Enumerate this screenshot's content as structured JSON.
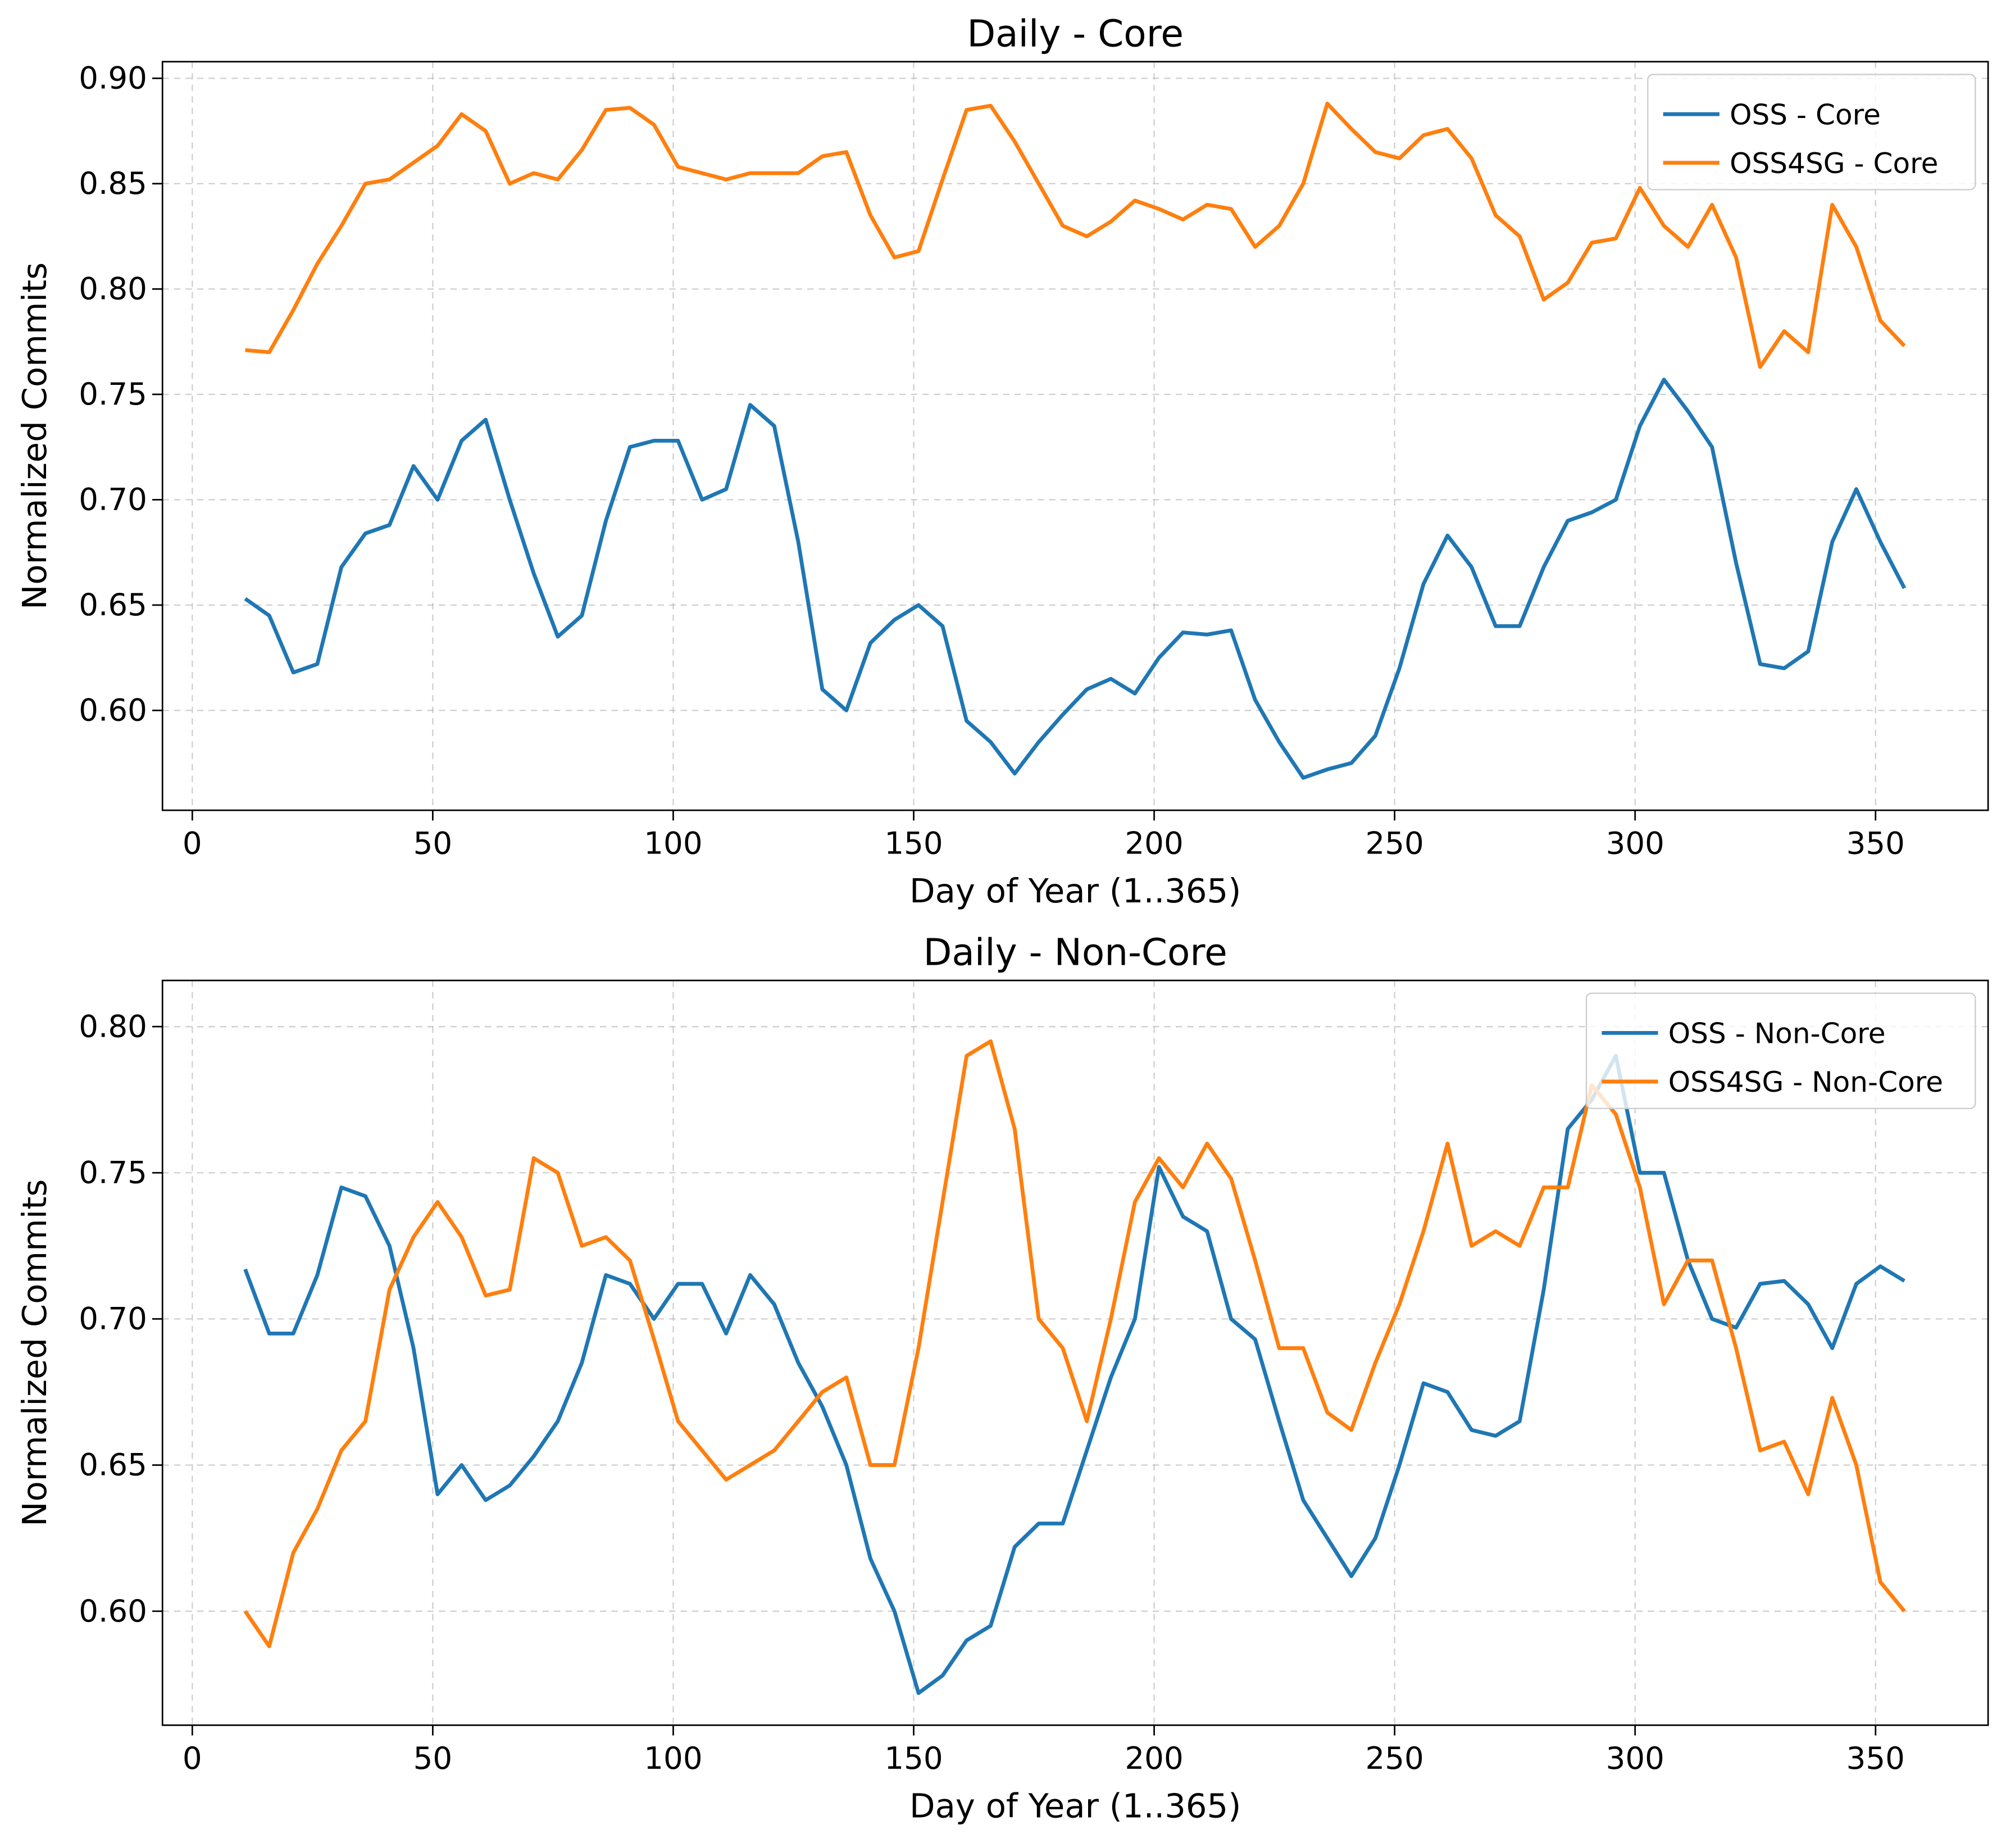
{
  "chart_data": [
    {
      "type": "line",
      "title": "Daily - Core",
      "xlabel": "Day of Year (1..365)",
      "ylabel": "Normalized Commits",
      "x": [
        11,
        16,
        21,
        26,
        31,
        36,
        41,
        46,
        51,
        56,
        61,
        66,
        71,
        76,
        81,
        86,
        91,
        96,
        101,
        106,
        111,
        116,
        121,
        126,
        131,
        136,
        141,
        146,
        151,
        156,
        161,
        166,
        171,
        176,
        181,
        186,
        191,
        196,
        201,
        206,
        211,
        216,
        221,
        226,
        231,
        236,
        241,
        246,
        251,
        256,
        261,
        266,
        271,
        276,
        281,
        286,
        291,
        296,
        301,
        306,
        311,
        316,
        321,
        326,
        331,
        336,
        341,
        346,
        351,
        356
      ],
      "series": [
        {
          "name": "OSS - Core",
          "color": "#1f77b4",
          "values": [
            0.653,
            0.645,
            0.618,
            0.622,
            0.668,
            0.684,
            0.688,
            0.716,
            0.7,
            0.728,
            0.738,
            0.7,
            0.665,
            0.635,
            0.645,
            0.69,
            0.725,
            0.728,
            0.728,
            0.7,
            0.705,
            0.745,
            0.735,
            0.68,
            0.61,
            0.6,
            0.632,
            0.643,
            0.65,
            0.64,
            0.595,
            0.585,
            0.57,
            0.585,
            0.598,
            0.61,
            0.615,
            0.608,
            0.625,
            0.637,
            0.636,
            0.638,
            0.605,
            0.585,
            0.568,
            0.572,
            0.575,
            0.588,
            0.62,
            0.66,
            0.683,
            0.668,
            0.64,
            0.64,
            0.668,
            0.69,
            0.694,
            0.7,
            0.735,
            0.757,
            0.742,
            0.725,
            0.67,
            0.622,
            0.62,
            0.628,
            0.68,
            0.705,
            0.68,
            0.658
          ]
        },
        {
          "name": "OSS4SG - Core",
          "color": "#ff7f0e",
          "values": [
            0.771,
            0.77,
            0.79,
            0.812,
            0.83,
            0.85,
            0.852,
            0.86,
            0.868,
            0.883,
            0.875,
            0.85,
            0.855,
            0.852,
            0.866,
            0.885,
            0.886,
            0.878,
            0.858,
            0.855,
            0.852,
            0.855,
            0.855,
            0.855,
            0.863,
            0.865,
            0.835,
            0.815,
            0.818,
            0.852,
            0.885,
            0.887,
            0.87,
            0.85,
            0.83,
            0.825,
            0.832,
            0.842,
            0.838,
            0.833,
            0.84,
            0.838,
            0.82,
            0.83,
            0.85,
            0.888,
            0.876,
            0.865,
            0.862,
            0.873,
            0.876,
            0.862,
            0.835,
            0.825,
            0.795,
            0.803,
            0.822,
            0.824,
            0.848,
            0.83,
            0.82,
            0.84,
            0.815,
            0.763,
            0.78,
            0.77,
            0.84,
            0.82,
            0.785,
            0.773
          ]
        }
      ],
      "xlim": [
        -6.2,
        373.4
      ],
      "ylim": [
        0.5526,
        0.9079
      ],
      "xticks": [
        0,
        50,
        100,
        150,
        200,
        250,
        300,
        350
      ],
      "yticks": [
        {
          "value": 0.6,
          "label": "0.60"
        },
        0.65,
        {
          "value": 0.7,
          "label": "0.70"
        },
        0.75,
        {
          "value": 0.8,
          "label": "0.80"
        },
        0.85,
        {
          "value": 0.9,
          "label": "0.90"
        }
      ],
      "grid": true,
      "legend": "upper right"
    },
    {
      "type": "line",
      "title": "Daily - Non-Core",
      "xlabel": "Day of Year (1..365)",
      "ylabel": "Normalized Commits",
      "x": [
        11,
        16,
        21,
        26,
        31,
        36,
        41,
        46,
        51,
        56,
        61,
        66,
        71,
        76,
        81,
        86,
        91,
        96,
        101,
        106,
        111,
        116,
        121,
        126,
        131,
        136,
        141,
        146,
        151,
        156,
        161,
        166,
        171,
        176,
        181,
        186,
        191,
        196,
        201,
        206,
        211,
        216,
        221,
        226,
        231,
        236,
        241,
        246,
        251,
        256,
        261,
        266,
        271,
        276,
        281,
        286,
        291,
        296,
        301,
        306,
        311,
        316,
        321,
        326,
        331,
        336,
        341,
        346,
        351,
        356
      ],
      "series": [
        {
          "name": "OSS - Non-Core",
          "color": "#1f77b4",
          "values": [
            0.717,
            0.695,
            0.695,
            0.715,
            0.745,
            0.742,
            0.725,
            0.69,
            0.64,
            0.65,
            0.638,
            0.643,
            0.653,
            0.665,
            0.685,
            0.715,
            0.712,
            0.7,
            0.712,
            0.712,
            0.695,
            0.715,
            0.705,
            0.685,
            0.67,
            0.65,
            0.618,
            0.6,
            0.572,
            0.578,
            0.59,
            0.595,
            0.622,
            0.63,
            0.63,
            0.655,
            0.68,
            0.7,
            0.752,
            0.735,
            0.73,
            0.7,
            0.693,
            0.665,
            0.638,
            0.625,
            0.612,
            0.625,
            0.65,
            0.678,
            0.675,
            0.662,
            0.66,
            0.665,
            0.71,
            0.765,
            0.775,
            0.79,
            0.75,
            0.75,
            0.72,
            0.7,
            0.697,
            0.712,
            0.713,
            0.705,
            0.69,
            0.712,
            0.718,
            0.713
          ]
        },
        {
          "name": "OSS4SG - Non-Core",
          "color": "#ff7f0e",
          "values": [
            0.6,
            0.588,
            0.62,
            0.635,
            0.655,
            0.665,
            0.71,
            0.728,
            0.74,
            0.728,
            0.708,
            0.71,
            0.755,
            0.75,
            0.725,
            0.728,
            0.72,
            0.693,
            0.665,
            0.655,
            0.645,
            0.65,
            0.655,
            0.665,
            0.675,
            0.68,
            0.65,
            0.65,
            0.69,
            0.74,
            0.79,
            0.795,
            0.765,
            0.7,
            0.69,
            0.665,
            0.7,
            0.74,
            0.755,
            0.745,
            0.76,
            0.748,
            0.72,
            0.69,
            0.69,
            0.668,
            0.662,
            0.685,
            0.705,
            0.73,
            0.76,
            0.725,
            0.73,
            0.725,
            0.745,
            0.745,
            0.78,
            0.77,
            0.745,
            0.705,
            0.72,
            0.72,
            0.69,
            0.655,
            0.658,
            0.64,
            0.673,
            0.65,
            0.61,
            0.6
          ]
        }
      ],
      "xlim": [
        -6.2,
        373.4
      ],
      "ylim": [
        0.561,
        0.8158
      ],
      "xticks": [
        0,
        50,
        100,
        150,
        200,
        250,
        300,
        350
      ],
      "yticks": [
        {
          "value": 0.6,
          "label": "0.60"
        },
        0.65,
        {
          "value": 0.7,
          "label": "0.70"
        },
        0.75,
        {
          "value": 0.8,
          "label": "0.80"
        }
      ],
      "grid": true,
      "legend": "upper right"
    }
  ]
}
